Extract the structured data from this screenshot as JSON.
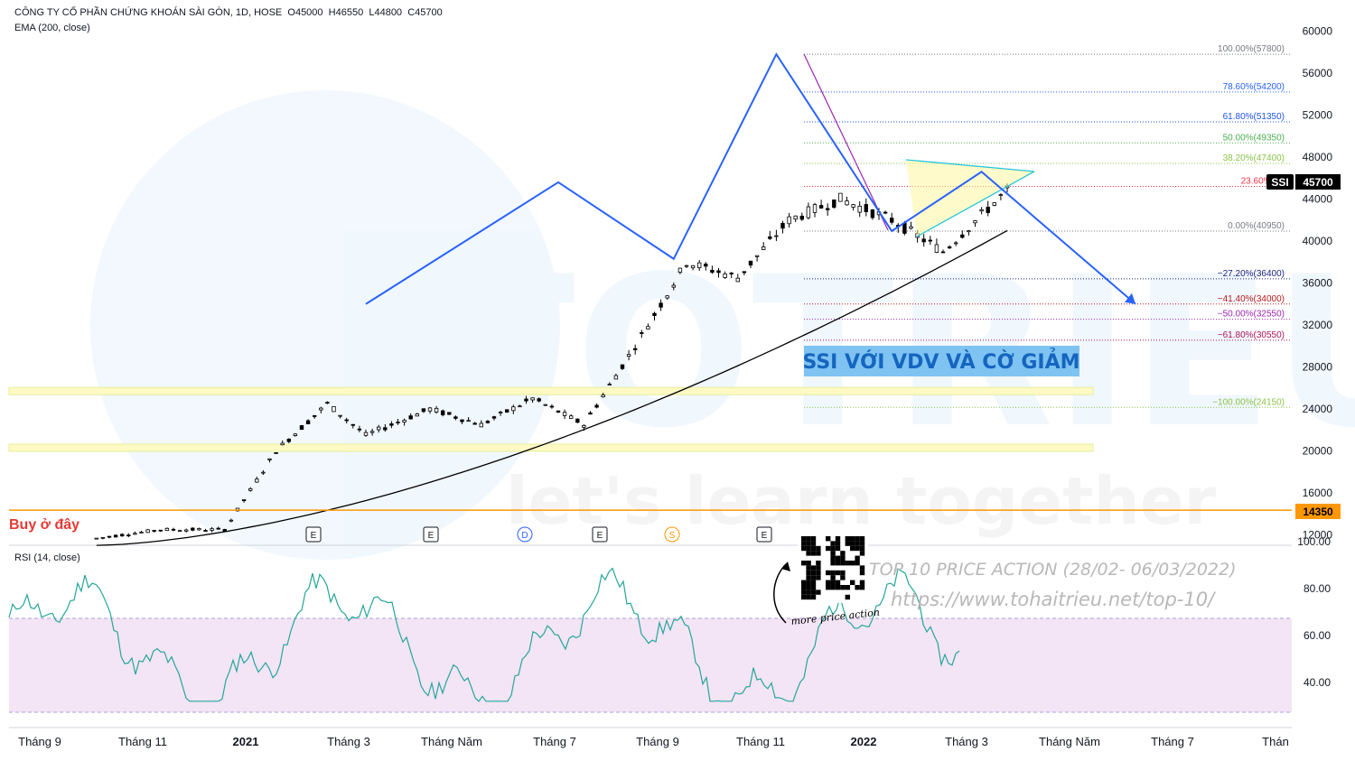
{
  "header": {
    "symbol_line": "CÔNG TY CỔ PHẦN CHỨNG KHOÁN SÀI GÒN, 1D, HOSE",
    "open": "O45000",
    "high": "H46550",
    "low": "L44800",
    "close": "C45700",
    "ema_label": "EMA (200, close)",
    "rsi_label": "RSI (14, close)"
  },
  "annotations": {
    "title_box": "SSI VỚI VDV VÀ CỜ GIẢM",
    "buy_label": "Buy ở đây",
    "promo_title": "TOP 10 PRICE ACTION (28/02- 06/03/2022)",
    "promo_url": "https://www.tohaitrieu.net/top-10/",
    "qr_caption": "more price action",
    "watermark_brand": "TOTRIEU",
    "watermark_tagline": "let's learn together"
  },
  "badges": {
    "symbol": "SSI",
    "last_price": "45700",
    "buy_level": "14350"
  },
  "chart_data": {
    "type": "candlestick",
    "symbol": "SSI",
    "price_axis": {
      "ticks": [
        12000,
        16000,
        20000,
        24000,
        28000,
        32000,
        36000,
        40000,
        44000,
        48000,
        52000,
        56000,
        60000
      ]
    },
    "rsi_axis": {
      "ticks": [
        "40.00",
        "60.00",
        "80.00",
        "100.00"
      ],
      "band": [
        30,
        70
      ]
    },
    "x_axis": {
      "ticks": [
        "Tháng 9",
        "Tháng 11",
        "2021",
        "Tháng 3",
        "Tháng Năm",
        "Tháng 7",
        "Tháng 9",
        "Tháng 11",
        "2022",
        "Tháng 3",
        "Tháng Năm",
        "Tháng 7",
        "Thán"
      ]
    },
    "fibonacci": [
      {
        "label": "100.00%(57800)",
        "price": 57800,
        "color": "#787b86"
      },
      {
        "label": "78.60%(54200)",
        "price": 54200,
        "color": "#2962ff"
      },
      {
        "label": "61.80%(51350)",
        "price": 51350,
        "color": "#1e53e5"
      },
      {
        "label": "50.00%(49350)",
        "price": 49350,
        "color": "#4caf50"
      },
      {
        "label": "38.20%(47400)",
        "price": 47400,
        "color": "#8bc34a"
      },
      {
        "label": "23.60%(44",
        "price": 45200,
        "color": "#f23645"
      },
      {
        "label": "0.00%(40950)",
        "price": 40950,
        "color": "#787b86"
      },
      {
        "label": "−27.20%(36400)",
        "price": 36400,
        "color": "#1a237e"
      },
      {
        "label": "−41.40%(34000)",
        "price": 34000,
        "color": "#b71c1c"
      },
      {
        "label": "−50.00%(32550)",
        "price": 32550,
        "color": "#9c27b0"
      },
      {
        "label": "−61.80%(30550)",
        "price": 30550,
        "color": "#ad1457"
      },
      {
        "label": "−100.00%(24150)",
        "price": 24150,
        "color": "#8bc34a"
      }
    ],
    "zones": [
      25700,
      20300
    ],
    "buy_level": 14350,
    "pattern_points": [
      [
        25,
        34000
      ],
      [
        40,
        45600
      ],
      [
        49,
        38300
      ],
      [
        57,
        57800
      ],
      [
        66,
        40950
      ],
      [
        73,
        46600
      ],
      [
        85,
        34000
      ]
    ],
    "series": [
      {
        "name": "EMA (200, close)",
        "values": []
      }
    ],
    "markers": [
      "E",
      "E",
      "D",
      "E",
      "S",
      "E"
    ]
  },
  "colors": {
    "candle": "#000000",
    "pattern": "#2962ff",
    "flag_fill": "#fff59d",
    "flag_edge": "#26c6da",
    "rsi_line": "#26a69a",
    "rsi_band": "#f3e5f5",
    "buy_line": "#ff9800",
    "title_bg": "#7ec3f1",
    "title_text": "#1565c0"
  }
}
